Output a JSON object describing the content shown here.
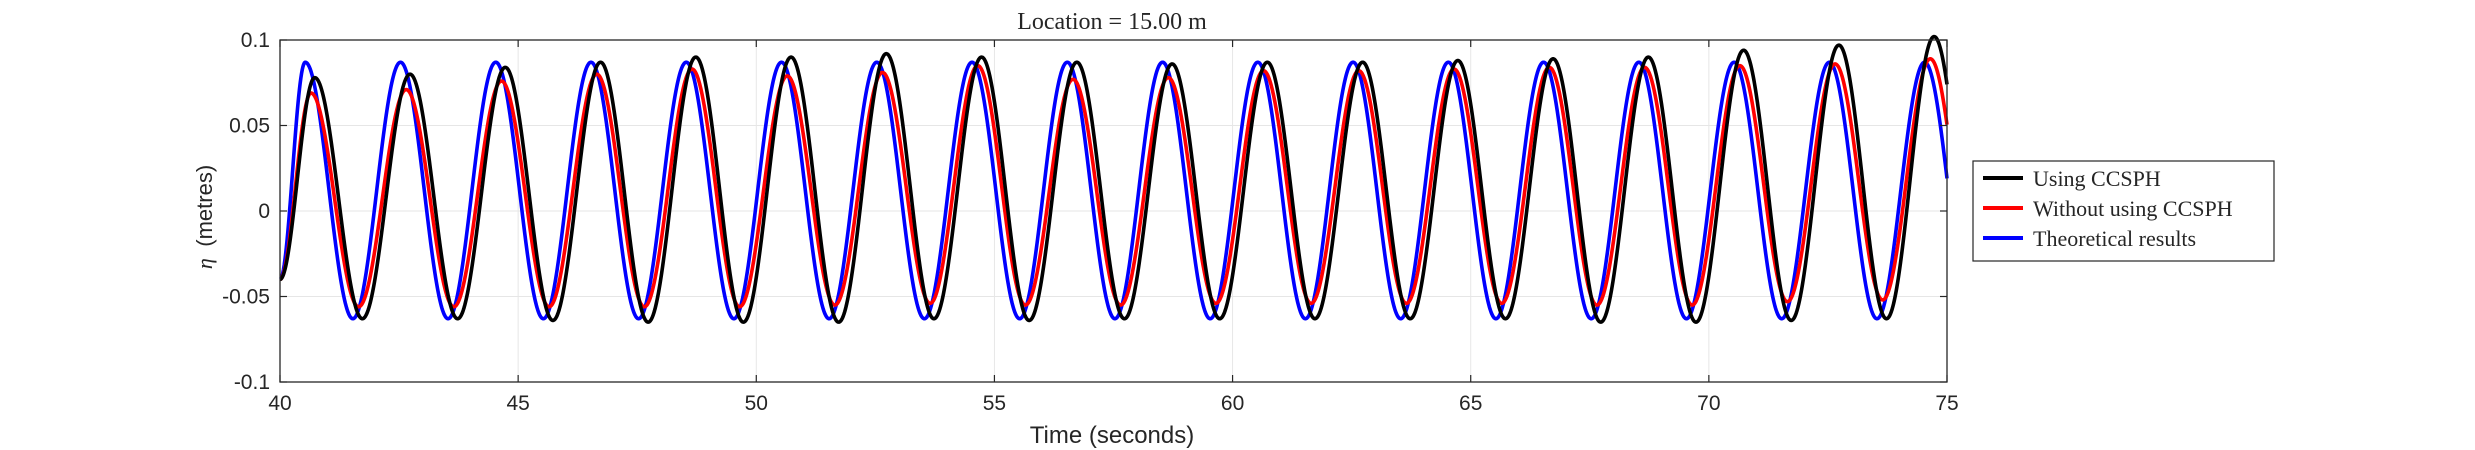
{
  "chart_data": {
    "type": "line",
    "title": "Location = 15.00 m",
    "xlabel": "Time (seconds)",
    "ylabel_symbol": "η",
    "ylabel": "(metres)",
    "xlim": [
      40,
      75
    ],
    "ylim": [
      -0.1,
      0.1
    ],
    "xticks": [
      40,
      45,
      50,
      55,
      60,
      65,
      70,
      75
    ],
    "xtick_labels": [
      "40",
      "45",
      "50",
      "55",
      "60",
      "65",
      "70",
      "75"
    ],
    "yticks": [
      -0.1,
      -0.05,
      0,
      0.05,
      0.1
    ],
    "ytick_labels": [
      "-0.1",
      "-0.05",
      "0",
      "0.05",
      "0.1"
    ],
    "grid": true,
    "legend_position": "outside-right",
    "period": 2.0,
    "series": [
      {
        "name": "Using CCSPH",
        "color": "#000000",
        "phase_offset": 0.08,
        "crest_times": [
          40.73,
          42.73,
          44.73,
          46.73,
          48.73,
          50.73,
          52.73,
          54.73,
          56.73,
          58.73,
          60.73,
          62.73,
          64.73,
          66.73,
          68.73,
          70.73,
          72.73,
          74.73
        ],
        "crests": [
          0.078,
          0.08,
          0.084,
          0.087,
          0.09,
          0.09,
          0.092,
          0.09,
          0.087,
          0.086,
          0.087,
          0.087,
          0.088,
          0.089,
          0.09,
          0.094,
          0.097,
          0.102
        ],
        "troughs": [
          -0.063,
          -0.063,
          -0.064,
          -0.065,
          -0.065,
          -0.065,
          -0.063,
          -0.064,
          -0.063,
          -0.063,
          -0.063,
          -0.063,
          -0.063,
          -0.065,
          -0.065,
          -0.064,
          -0.063
        ]
      },
      {
        "name": "Without using CCSPH",
        "color": "#ff0000",
        "phase_offset": 0.0,
        "crest_times": [
          40.65,
          42.65,
          44.65,
          46.65,
          48.65,
          50.65,
          52.65,
          54.65,
          56.65,
          58.65,
          60.65,
          62.65,
          64.65,
          66.65,
          68.65,
          70.65,
          72.65,
          74.65
        ],
        "crests": [
          0.069,
          0.071,
          0.076,
          0.08,
          0.083,
          0.079,
          0.081,
          0.085,
          0.077,
          0.078,
          0.082,
          0.082,
          0.083,
          0.084,
          0.084,
          0.085,
          0.086,
          0.089
        ],
        "troughs": [
          -0.056,
          -0.056,
          -0.056,
          -0.056,
          -0.056,
          -0.055,
          -0.054,
          -0.055,
          -0.055,
          -0.054,
          -0.054,
          -0.054,
          -0.054,
          -0.055,
          -0.055,
          -0.053,
          -0.052
        ]
      },
      {
        "name": "Theoretical results",
        "color": "#0000ff",
        "phase_offset": -0.12,
        "crest_times": [
          40.53,
          42.53,
          44.53,
          46.53,
          48.53,
          50.53,
          52.53,
          54.53,
          56.53,
          58.53,
          60.53,
          62.53,
          64.53,
          66.53,
          68.53,
          70.53,
          72.53,
          74.53
        ],
        "crests": [
          0.087,
          0.087,
          0.087,
          0.087,
          0.087,
          0.087,
          0.087,
          0.087,
          0.087,
          0.087,
          0.087,
          0.087,
          0.087,
          0.087,
          0.087,
          0.087,
          0.087,
          0.087
        ],
        "troughs": [
          -0.063,
          -0.063,
          -0.063,
          -0.063,
          -0.063,
          -0.063,
          -0.063,
          -0.063,
          -0.063,
          -0.063,
          -0.063,
          -0.063,
          -0.063,
          -0.063,
          -0.063,
          -0.063,
          -0.063
        ]
      }
    ]
  }
}
